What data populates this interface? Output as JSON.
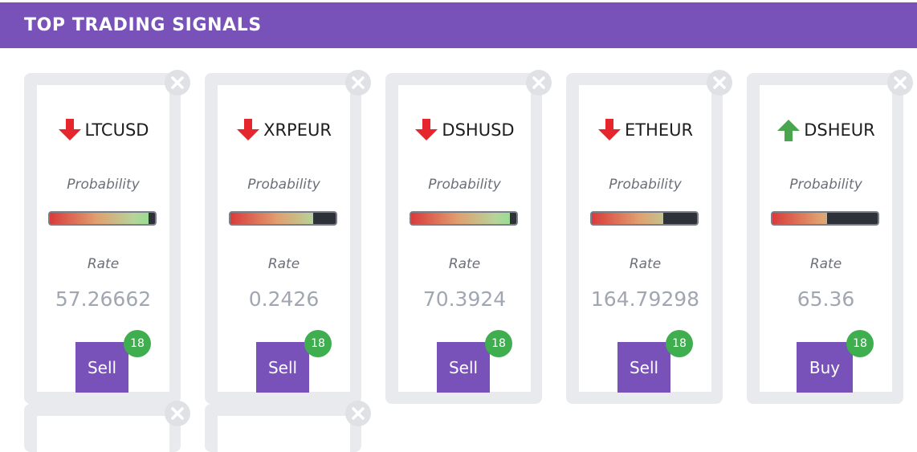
{
  "header": {
    "title": "TOP TRADING SIGNALS"
  },
  "signals": [
    {
      "symbol": "LTCUSD",
      "direction": "down",
      "probability_label": "Probability",
      "probability": 0.94,
      "rate_label": "Rate",
      "rate": "57.26662",
      "action": "Sell",
      "badge": "18"
    },
    {
      "symbol": "XRPEUR",
      "direction": "down",
      "probability_label": "Probability",
      "probability": 0.79,
      "rate_label": "Rate",
      "rate": "0.2426",
      "action": "Sell",
      "badge": "18"
    },
    {
      "symbol": "DSHUSD",
      "direction": "down",
      "probability_label": "Probability",
      "probability": 0.94,
      "rate_label": "Rate",
      "rate": "70.3924",
      "action": "Sell",
      "badge": "18"
    },
    {
      "symbol": "ETHEUR",
      "direction": "down",
      "probability_label": "Probability",
      "probability": 0.68,
      "rate_label": "Rate",
      "rate": "164.79298",
      "action": "Sell",
      "badge": "18"
    },
    {
      "symbol": "DSHEUR",
      "direction": "up",
      "probability_label": "Probability",
      "probability": 0.52,
      "rate_label": "Rate",
      "rate": "65.36",
      "action": "Buy",
      "badge": "18"
    }
  ],
  "colors": {
    "accent": "#7851b9",
    "down_arrow": "#e5262d",
    "up_arrow": "#4aa64e",
    "badge": "#3fae4f"
  },
  "icons": {
    "close": "close-icon",
    "down": "arrow-down-icon",
    "up": "arrow-up-icon"
  }
}
